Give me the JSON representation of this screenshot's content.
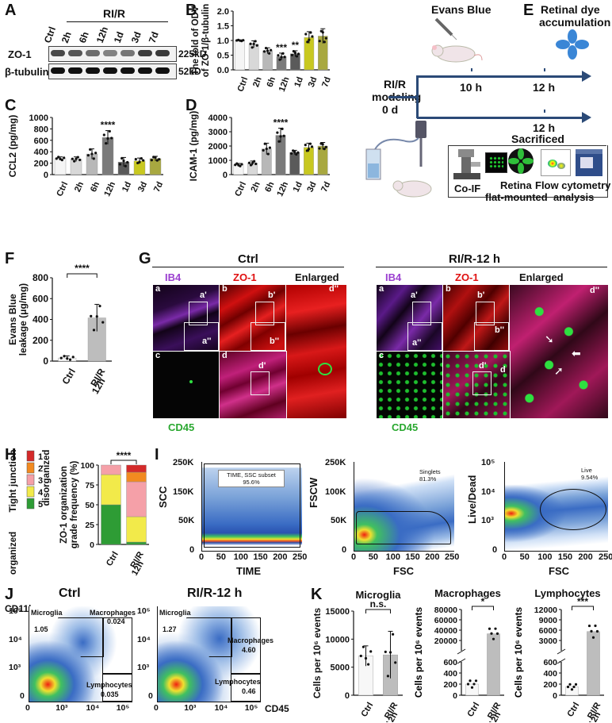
{
  "panels": {
    "A": "A",
    "B": "B",
    "C": "C",
    "D": "D",
    "E": "E",
    "F": "F",
    "G": "G",
    "H": "H",
    "I": "I",
    "J": "J",
    "K": "K"
  },
  "A": {
    "group": "RI/R",
    "lanes": [
      "Ctrl",
      "2h",
      "6h",
      "12h",
      "1d",
      "3d",
      "7d"
    ],
    "rows": [
      "ZO-1",
      "β-tubulin"
    ],
    "sizes": [
      "225kD",
      "52kD"
    ]
  },
  "chart_data": [
    {
      "id": "B",
      "type": "bar",
      "categories": [
        "Ctrl",
        "2h",
        "6h",
        "12h",
        "1d",
        "3d",
        "7d"
      ],
      "values": [
        1.0,
        0.87,
        0.65,
        0.45,
        0.55,
        1.1,
        1.15
      ],
      "errors": [
        0.02,
        0.12,
        0.1,
        0.12,
        0.1,
        0.2,
        0.25
      ],
      "ylabel": "The fold of ODV of ZO-1/β-tubulin",
      "ylim": [
        0,
        2.0
      ],
      "yticks": [
        "0.0",
        "0.5",
        "1.0",
        "1.5",
        "2.0"
      ],
      "annotations": [
        {
          "category": "12h",
          "text": "***"
        },
        {
          "category": "1d",
          "text": "**"
        }
      ],
      "colors": [
        "#f5f5f5",
        "#d8d8d8",
        "#b8b8b8",
        "#7a7a7a",
        "#5a5a5a",
        "#c8c820",
        "#a8a840"
      ]
    },
    {
      "id": "C",
      "type": "bar",
      "categories": [
        "Ctrl",
        "2h",
        "6h",
        "12h",
        "1d",
        "3d",
        "7d"
      ],
      "values": [
        280,
        270,
        360,
        650,
        220,
        240,
        280
      ],
      "errors": [
        30,
        40,
        90,
        120,
        80,
        50,
        40
      ],
      "ylabel": "CCL2 (pg/mg)",
      "ylim": [
        0,
        1000
      ],
      "yticks": [
        "0",
        "200",
        "400",
        "600",
        "800",
        "1000"
      ],
      "annotations": [
        {
          "category": "12h",
          "text": "****"
        }
      ],
      "colors": [
        "#f5f5f5",
        "#d8d8d8",
        "#b8b8b8",
        "#7a7a7a",
        "#5a5a5a",
        "#c8c820",
        "#a8a840"
      ]
    },
    {
      "id": "D",
      "type": "bar",
      "categories": [
        "Ctrl",
        "2h",
        "6h",
        "12h",
        "1d",
        "3d",
        "7d"
      ],
      "values": [
        680,
        800,
        1800,
        2750,
        1550,
        1900,
        2000
      ],
      "errors": [
        100,
        150,
        400,
        500,
        150,
        300,
        250
      ],
      "ylabel": "ICAM-1 (pg/mg)",
      "ylim": [
        0,
        4000
      ],
      "yticks": [
        "0",
        "1000",
        "2000",
        "3000",
        "4000"
      ],
      "annotations": [
        {
          "category": "12h",
          "text": "****"
        }
      ],
      "colors": [
        "#f5f5f5",
        "#d8d8d8",
        "#b8b8b8",
        "#7a7a7a",
        "#5a5a5a",
        "#c8c820",
        "#a8a840"
      ]
    },
    {
      "id": "F",
      "type": "bar",
      "categories": [
        "Ctrl",
        "RI/R 12h"
      ],
      "values": [
        30,
        415
      ],
      "errors": [
        20,
        130
      ],
      "ylabel": "Evans Blue leakage (μg/mg)",
      "ylim": [
        0,
        800
      ],
      "yticks": [
        "0",
        "200",
        "400",
        "600",
        "800"
      ],
      "annotations": [
        {
          "text": "****"
        }
      ],
      "colors": [
        "#f7f7f7",
        "#bdbdbd"
      ]
    },
    {
      "id": "H",
      "type": "bar",
      "stacked": true,
      "categories": [
        "Ctrl",
        "RI/R 12h"
      ],
      "series": [
        {
          "name": "5",
          "values": [
            50,
            3
          ]
        },
        {
          "name": "4",
          "values": [
            38,
            32
          ]
        },
        {
          "name": "3",
          "values": [
            12,
            44
          ]
        },
        {
          "name": "2",
          "values": [
            0,
            12
          ]
        },
        {
          "name": "1",
          "values": [
            0,
            9
          ]
        }
      ],
      "ylabel": "ZO-1 organization grade frequency (%)",
      "ylim": [
        0,
        100
      ],
      "yticks": [
        "0",
        "25",
        "50",
        "75",
        "100"
      ],
      "annotations": [
        {
          "text": "****"
        }
      ],
      "legend_title": "Tight junction",
      "legend_top": "disorganized",
      "legend_bottom": "organized",
      "colors": [
        "#2e9c35",
        "#f2ea4a",
        "#f5a0a8",
        "#f28a20",
        "#d42a2a"
      ]
    },
    {
      "id": "K1",
      "type": "bar",
      "title": "Microglia",
      "categories": [
        "Ctrl",
        "RI/R 12h"
      ],
      "values": [
        7000,
        7200
      ],
      "errors": [
        1800,
        4200
      ],
      "ylabel": "Cells per 10⁶ events",
      "ylim": [
        0,
        15000
      ],
      "yticks": [
        "0",
        "5000",
        "10000",
        "15000"
      ],
      "annotations": [
        {
          "text": "n.s."
        }
      ],
      "colors": [
        "#f7f7f7",
        "#bdbdbd"
      ]
    },
    {
      "id": "K2",
      "type": "bar",
      "title": "Macrophages",
      "categories": [
        "Ctrl",
        "RI/R 12h"
      ],
      "values": [
        200,
        33000
      ],
      "ylabel": "Cells per 10⁶ events",
      "yticks_low": [
        "0",
        "200",
        "400",
        "600"
      ],
      "yticks_high": [
        "20000",
        "40000",
        "60000",
        "80000"
      ],
      "annotations": [
        {
          "text": "*"
        }
      ],
      "colors": [
        "#f7f7f7",
        "#bdbdbd"
      ]
    },
    {
      "id": "K3",
      "type": "bar",
      "title": "Lymphocytes",
      "categories": [
        "Ctrl",
        "RI/R 12h"
      ],
      "values": [
        150,
        5600
      ],
      "ylabel": "Cells per 10⁶ events",
      "yticks_low": [
        "0",
        "200",
        "400",
        "600"
      ],
      "yticks_high": [
        "3000",
        "6000",
        "9000",
        "12000"
      ],
      "annotations": [
        {
          "text": "***"
        }
      ],
      "colors": [
        "#f7f7f7",
        "#bdbdbd"
      ]
    }
  ],
  "E": {
    "evans": "Evans Blue",
    "retinal": "Retinal dye accumulation",
    "model1": "RI/R",
    "model2": "modeling",
    "model3": "0 d",
    "t10": "10 h",
    "t12a": "12 h",
    "t12b": "12 h",
    "sacrificed": "Sacrificed",
    "coif": "Co-IF",
    "retina1": "Retina",
    "retina2": "flat-mounted",
    "flow1": "Flow cytometry",
    "flow2": "analysis"
  },
  "G": {
    "ctrl_title": "Ctrl",
    "rir_title": "RI/R-12 h",
    "ib4": "IB4",
    "zo1": "ZO-1",
    "enlarged": "Enlarged",
    "cd45": "CD45",
    "lbl_a": "a",
    "lbl_b": "b",
    "lbl_c": "c",
    "lbl_d": "d",
    "lbl_a1": "a'",
    "lbl_a2": "a''",
    "lbl_b1": "b'",
    "lbl_b2": "b''",
    "lbl_d1": "d'",
    "lbl_d2": "d''"
  },
  "I": {
    "p1_ylabel": "SCC",
    "p1_xlabel": "TIME",
    "p1_gate": "TIME, SSC subset",
    "p1_pct": "95.6%",
    "p1_yticks": [
      "250K",
      "150K",
      "50K",
      "0"
    ],
    "p1_xticks": [
      "0",
      "50",
      "100",
      "150",
      "200",
      "250"
    ],
    "p2_ylabel": "FSCW",
    "p2_xlabel": "FSC",
    "p2_gate": "Singlets",
    "p2_pct": "81.3%",
    "p2_yticks": [
      "250K",
      "100K",
      "50K",
      "0"
    ],
    "p2_xticks": [
      "0",
      "50",
      "100",
      "150",
      "200",
      "250"
    ],
    "p3_ylabel": "Live/Dead",
    "p3_xlabel": "FSC",
    "p3_gate": "Live",
    "p3_pct": "9.54%",
    "p3_yticks": [
      "10⁵",
      "10⁴",
      "10³",
      "0"
    ],
    "p3_xticks": [
      "0",
      "50",
      "100",
      "150",
      "200",
      "250"
    ]
  },
  "J": {
    "ylabel": "CD11b",
    "xlabel": "CD45",
    "ctrl_title": "Ctrl",
    "rir_title": "RI/R-12 h",
    "microglia": "Microglia",
    "macrophages": "Macrophages",
    "lymphocytes": "Lymphocytes",
    "ctrl_mg": "1.05",
    "ctrl_mp": "0.024",
    "ctrl_ly": "0.035",
    "rir_mg": "1.27",
    "rir_mp": "4.60",
    "rir_ly": "0.46",
    "yticks": [
      "10⁵",
      "10⁴",
      "10³",
      "0"
    ],
    "xticks": [
      "0",
      "10³",
      "10⁴",
      "10⁵"
    ]
  }
}
